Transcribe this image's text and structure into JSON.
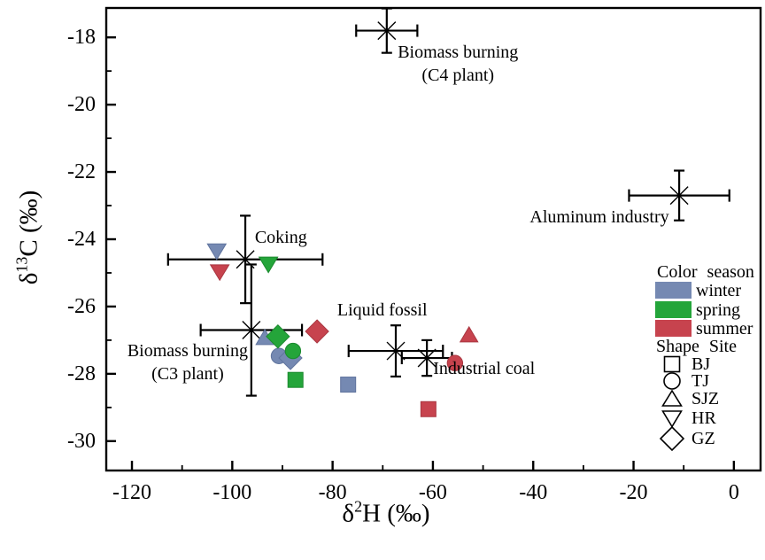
{
  "chart_data": {
    "type": "scatter",
    "title": "",
    "xlabel": {
      "lead": "δ",
      "sup": "2",
      "tail": "H (‰)"
    },
    "ylabel": {
      "lead": "δ",
      "sup": "13",
      "tail": "C (‰)"
    },
    "xlim": [
      -125.3,
      5.5
    ],
    "ylim": [
      -30.9,
      -17.1
    ],
    "x_major_ticks": [
      -120,
      -100,
      -80,
      -60,
      -40,
      -20,
      0
    ],
    "x_minor_ticks": [
      -110,
      -90,
      -70,
      -50,
      -30,
      -10
    ],
    "y_major_ticks": [
      -18,
      -20,
      -22,
      -24,
      -26,
      -28,
      -30
    ],
    "y_minor_ticks": [
      -19,
      -21,
      -23,
      -25,
      -27,
      -29
    ],
    "grid": false,
    "series": [
      {
        "name": "winter",
        "color": "#7589B2",
        "edge": "#60749E",
        "points": [
          {
            "site": "HR",
            "shape": "triangle-down",
            "x": -103.1,
            "y": -24.35
          },
          {
            "site": "SJZ",
            "shape": "triangle",
            "x": -93.5,
            "y": -26.92
          },
          {
            "site": "TJ",
            "shape": "circle",
            "x": -90.7,
            "y": -27.47
          },
          {
            "site": "GZ",
            "shape": "diamond",
            "x": -88.4,
            "y": -27.53
          },
          {
            "site": "BJ",
            "shape": "square",
            "x": -76.9,
            "y": -28.32
          }
        ]
      },
      {
        "name": "spring",
        "color": "#24A53A",
        "edge": "#1C8A2F",
        "points": [
          {
            "site": "HR",
            "shape": "triangle-down",
            "x": -92.8,
            "y": -24.74
          },
          {
            "site": "GZ",
            "shape": "diamond",
            "x": -90.9,
            "y": -26.89
          },
          {
            "site": "TJ",
            "shape": "circle",
            "x": -87.9,
            "y": -27.32
          },
          {
            "site": "BJ",
            "shape": "square",
            "x": -87.4,
            "y": -28.18
          }
        ]
      },
      {
        "name": "summer",
        "color": "#C7434E",
        "edge": "#A93640",
        "points": [
          {
            "site": "HR",
            "shape": "triangle-down",
            "x": -102.5,
            "y": -24.97
          },
          {
            "site": "GZ",
            "shape": "diamond",
            "x": -83.1,
            "y": -26.74
          },
          {
            "site": "SJZ",
            "shape": "triangle",
            "x": -52.8,
            "y": -26.84
          },
          {
            "site": "TJ",
            "shape": "circle",
            "x": -55.6,
            "y": -27.68
          },
          {
            "site": "BJ",
            "shape": "square",
            "x": -60.9,
            "y": -29.05
          }
        ]
      }
    ],
    "sources": [
      {
        "name": "Biomass burning (C4 plant)",
        "x": -69.2,
        "y": -17.8,
        "xerr": 6.1,
        "yerr": 0.66,
        "label_lines": [
          "Biomass burning",
          "(C4 plant)"
        ],
        "label_x": -55.0,
        "label_y": -18.45
      },
      {
        "name": "Aluminum industry",
        "x": -10.9,
        "y": -22.7,
        "xerr": 10.0,
        "yerr": 0.74,
        "label_lines": [
          "Aluminum industry"
        ],
        "label_x": -26.8,
        "label_y": -23.35
      },
      {
        "name": "Coking",
        "x": -97.4,
        "y": -24.6,
        "xerr": 15.4,
        "yerr": 1.3,
        "label_lines": [
          "Coking"
        ],
        "label_x": -90.3,
        "label_y": -23.95
      },
      {
        "name": "Biomass burning (C3 plant)",
        "x": -96.2,
        "y": -26.7,
        "xerr": 10.1,
        "yerr": 1.95,
        "label_lines": [
          "Biomass burning",
          "(C3 plant)"
        ],
        "label_x": -108.9,
        "label_y": -27.32
      },
      {
        "name": "Liquid fossil",
        "x": -67.4,
        "y": -27.32,
        "xerr": 9.4,
        "yerr": 0.76,
        "label_lines": [
          "Liquid fossil"
        ],
        "label_x": -70.1,
        "label_y": -26.1
      },
      {
        "name": "Industrial coal",
        "x": -61.2,
        "y": -27.53,
        "xerr": 5.0,
        "yerr": 0.53,
        "label_lines": [
          "Industrial coal"
        ],
        "label_x": -49.8,
        "label_y": -27.85
      }
    ]
  },
  "legend": {
    "color_header": "Color season",
    "seasons": [
      {
        "label": "winter",
        "color": "#7589B2"
      },
      {
        "label": "spring",
        "color": "#24A53A"
      },
      {
        "label": "summer",
        "color": "#C7434E"
      }
    ],
    "shape_header": "Shape Site",
    "sites": [
      {
        "label": "BJ",
        "shape": "square"
      },
      {
        "label": "TJ",
        "shape": "circle"
      },
      {
        "label": "SJZ",
        "shape": "triangle"
      },
      {
        "label": "HR",
        "shape": "triangle-down"
      },
      {
        "label": "GZ",
        "shape": "diamond"
      }
    ]
  }
}
